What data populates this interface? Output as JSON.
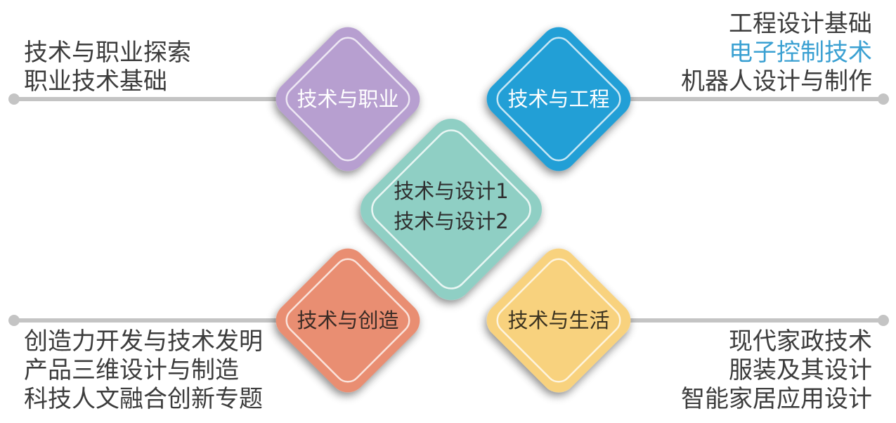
{
  "diamonds": {
    "career": {
      "label": "技术与职业",
      "color": "#b79fd0",
      "text_color": "#ffffff"
    },
    "engineering": {
      "label": "技术与工程",
      "color": "#239fd6",
      "text_color": "#ffffff"
    },
    "design": {
      "line1": "技术与设计1",
      "line2": "技术与设计2",
      "color": "#8fcfc4",
      "text_color": "#2f2f2f"
    },
    "creation": {
      "label": "技术与创造",
      "color": "#e98e72",
      "text_color": "#3a2b25"
    },
    "life": {
      "label": "技术与生活",
      "color": "#f8d27e",
      "text_color": "#3b3320"
    }
  },
  "lists": {
    "top_left": [
      "技术与职业探索",
      "职业技术基础"
    ],
    "top_right": [
      "工程设计基础",
      "电子控制技术",
      "机器人设计与制作"
    ],
    "bottom_left": [
      "创造力开发与技术发明",
      "产品三维设计与制造",
      "科技人文融合创新专题"
    ],
    "bottom_right": [
      "现代家政技术",
      "服装及其设计",
      "智能家居应用设计"
    ]
  },
  "colors": {
    "connector_line": "#c4c4c4",
    "highlight_text": "#3aa0d2"
  }
}
